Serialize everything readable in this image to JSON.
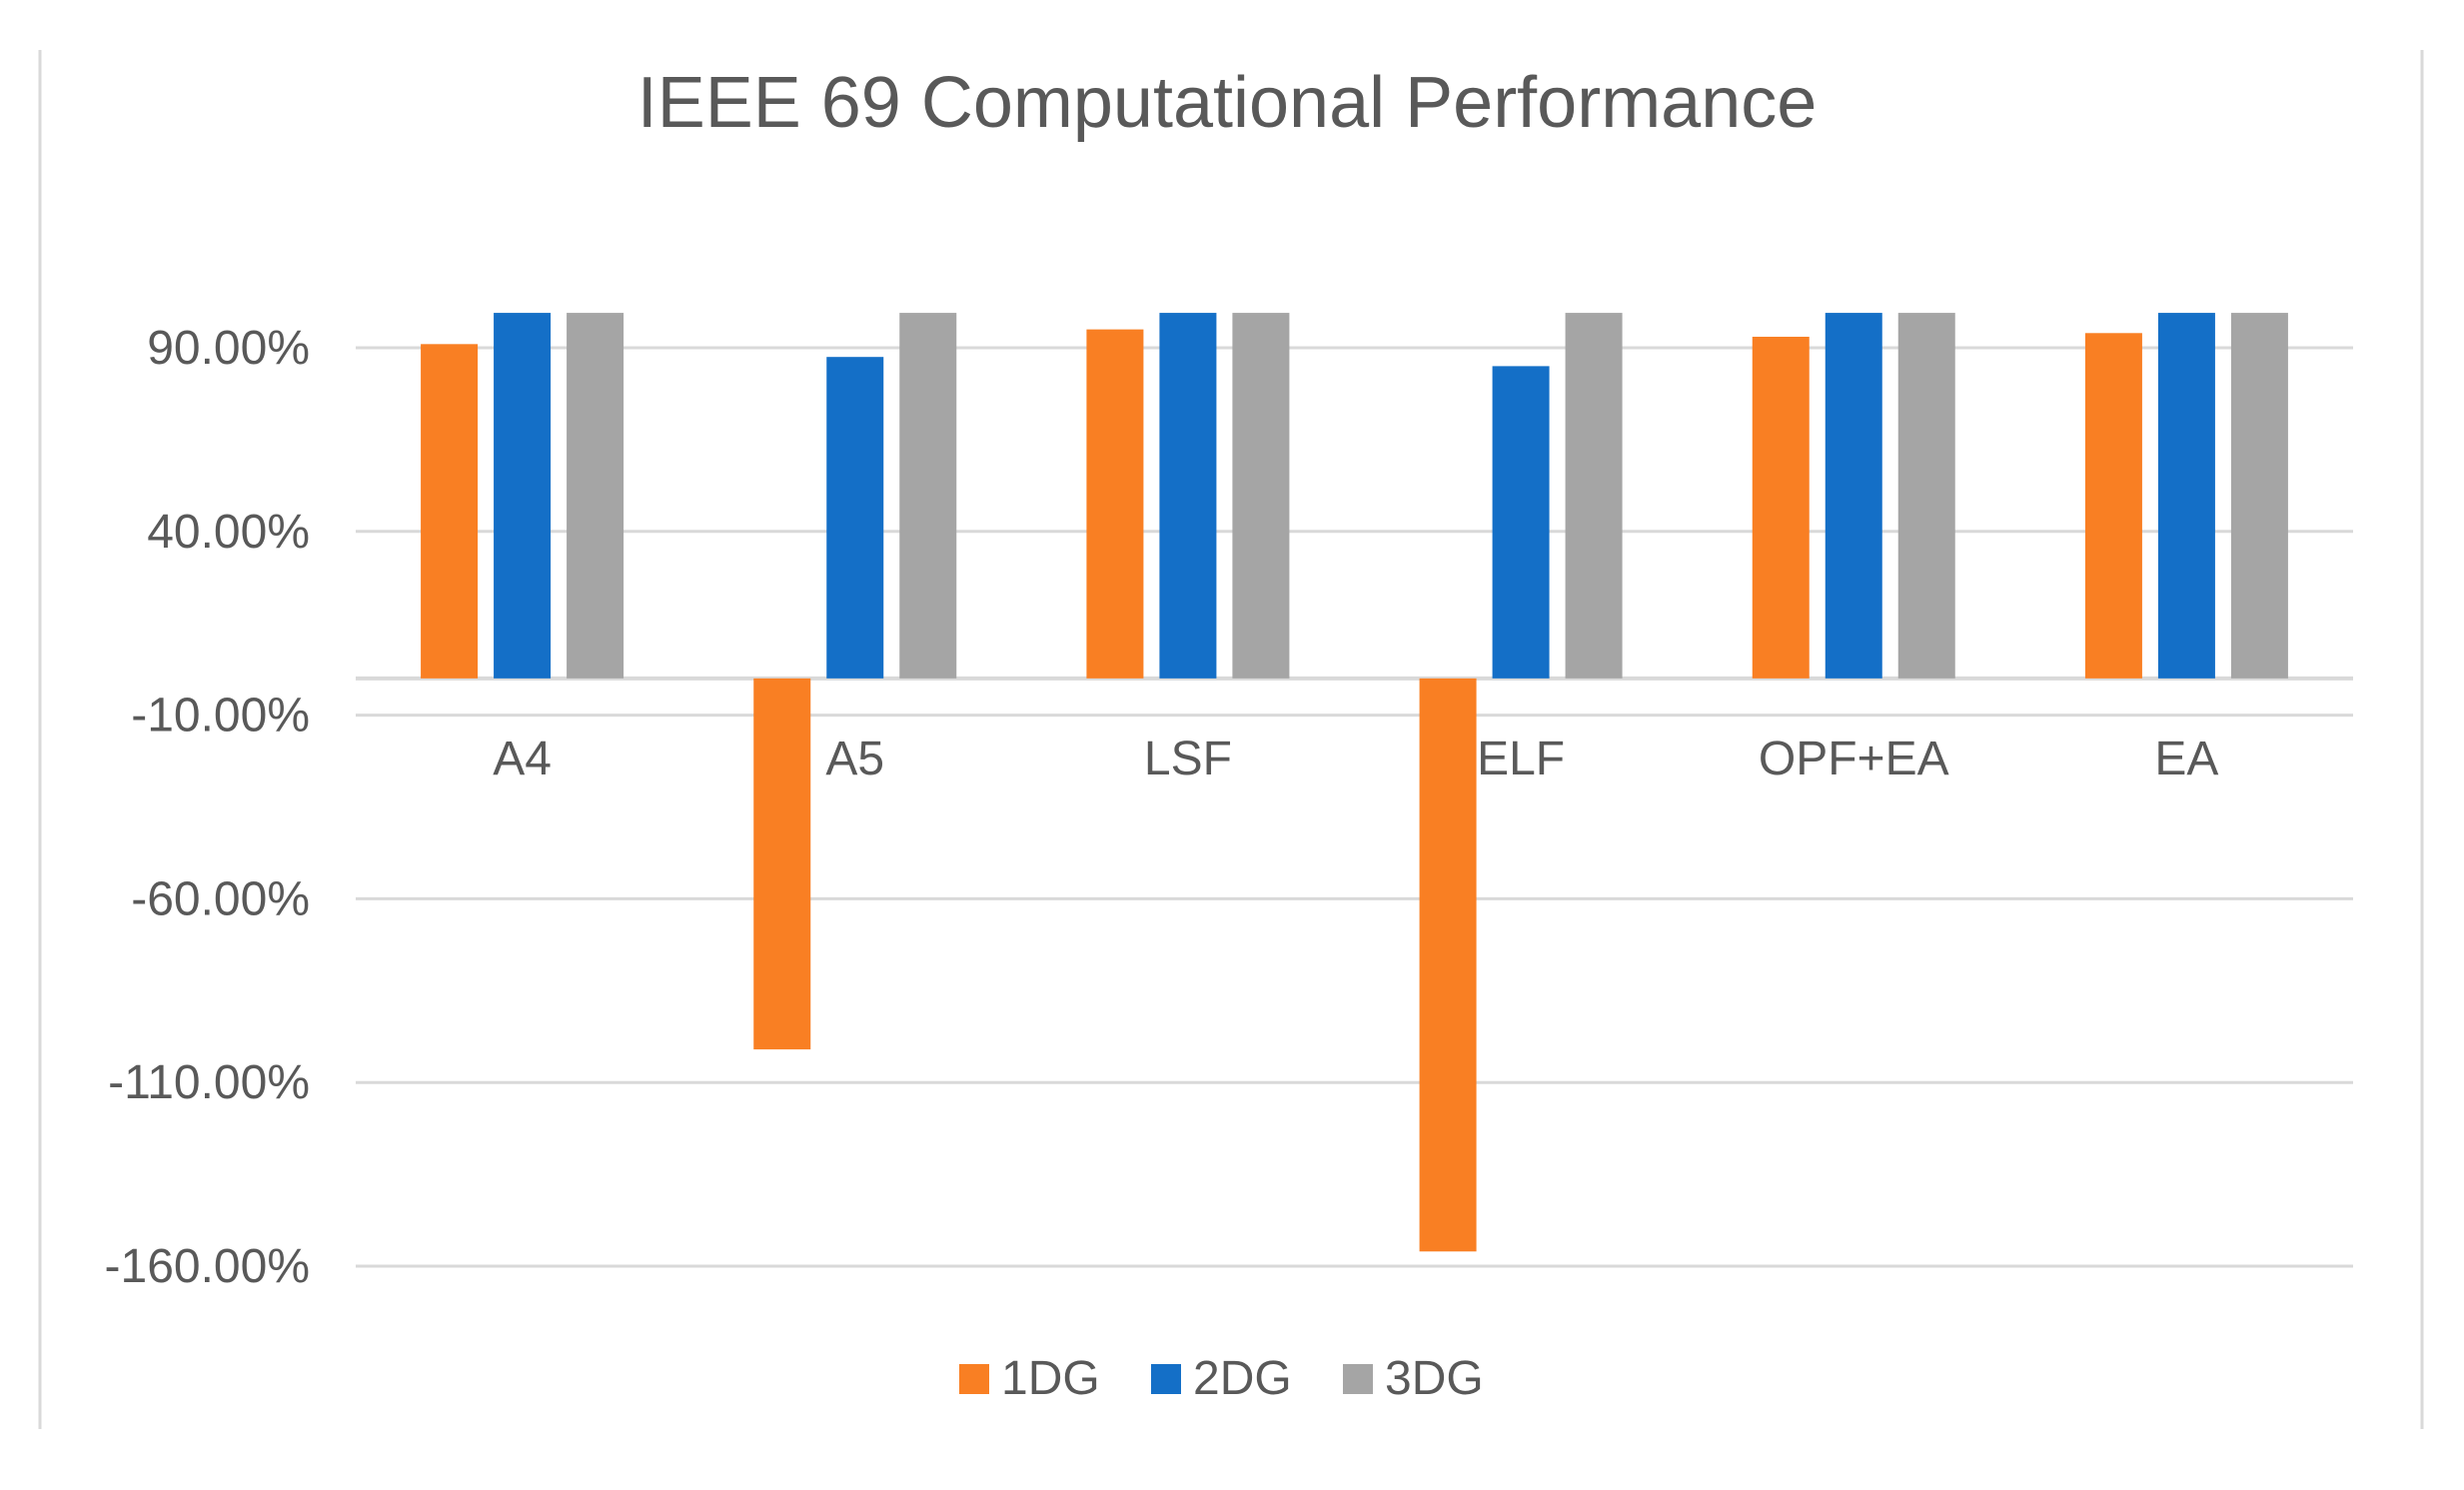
{
  "chart_data": {
    "type": "bar",
    "title": "IEEE 69 Computational Performance",
    "xlabel": "",
    "ylabel": "",
    "categories": [
      "A4",
      "A5",
      "LSF",
      "ELF",
      "OPF+EA",
      "EA"
    ],
    "series": [
      {
        "name": "1DG",
        "color": "#F97F23",
        "values": [
          91.0,
          -101.0,
          95.0,
          -156.0,
          93.0,
          94.0
        ]
      },
      {
        "name": "2DG",
        "color": "#146FC7",
        "values": [
          99.5,
          87.5,
          99.5,
          85.0,
          99.5,
          99.5
        ]
      },
      {
        "name": "3DG",
        "color": "#A5A5A5",
        "values": [
          99.5,
          99.5,
          99.5,
          99.5,
          99.5,
          99.5
        ]
      }
    ],
    "ylim": [
      -160,
      90
    ],
    "yticks": [
      90,
      40,
      -10,
      -60,
      -110,
      -160
    ],
    "ytick_labels": [
      "90.00%",
      "40.00%",
      "-10.00%",
      "-60.00%",
      "-110.00%",
      "-160.00%"
    ],
    "grid": true,
    "legend": "bottom"
  },
  "colors": {
    "grid": "#D9D9D9",
    "axis_text": "#595959",
    "title_text": "#595959",
    "border": "#D9D9D9"
  }
}
